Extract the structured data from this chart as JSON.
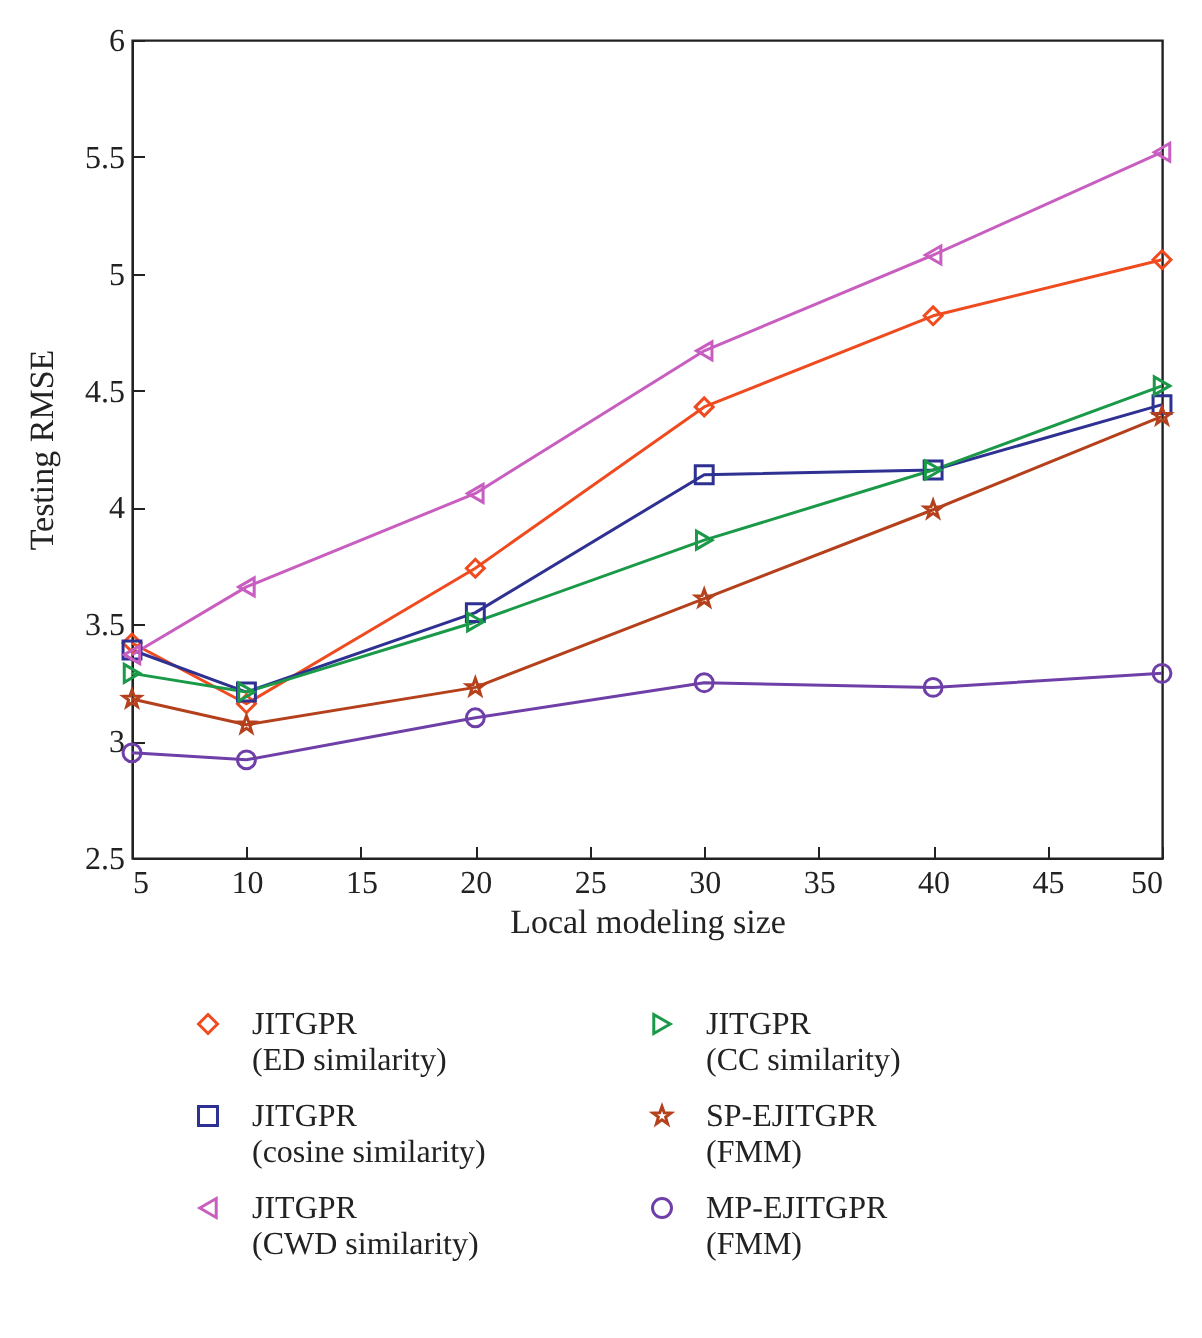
{
  "chart_data": {
    "type": "line",
    "xlabel": "Local modeling size",
    "ylabel": "Testing RMSE",
    "x": [
      5,
      10,
      20,
      30,
      40,
      50
    ],
    "xlim": [
      5,
      50
    ],
    "xticks": [
      5,
      10,
      15,
      20,
      25,
      30,
      35,
      40,
      45,
      50
    ],
    "ylim": [
      2.5,
      6
    ],
    "yticks": [
      2.5,
      3,
      3.5,
      4,
      4.5,
      5,
      5.5,
      6
    ],
    "grid": false,
    "legend": "bottom",
    "series": [
      {
        "name": "JITGPR\n(ED similarity)",
        "color": "#f04a1f",
        "marker": "diamond",
        "values": [
          3.42,
          3.16,
          3.74,
          4.43,
          4.82,
          5.06
        ]
      },
      {
        "name": "JITGPR\n(cosine similarity)",
        "color": "#2e3192",
        "marker": "square",
        "values": [
          3.39,
          3.21,
          3.55,
          4.14,
          4.16,
          4.44
        ]
      },
      {
        "name": "JITGPR\n(CWD similarity)",
        "color": "#c85ec0",
        "marker": "triangle-left",
        "values": [
          3.37,
          3.66,
          4.06,
          4.67,
          5.08,
          5.52
        ]
      },
      {
        "name": "JITGPR\n(CC similarity)",
        "color": "#1a9a48",
        "marker": "triangle-right",
        "values": [
          3.29,
          3.21,
          3.51,
          3.86,
          4.16,
          4.52
        ]
      },
      {
        "name": "SP-EJITGPR\n(FMM)",
        "color": "#b5401c",
        "marker": "star",
        "values": [
          3.18,
          3.07,
          3.23,
          3.61,
          3.99,
          4.39
        ]
      },
      {
        "name": "MP-EJITGPR\n(FMM)",
        "color": "#6f3fa8",
        "marker": "circle",
        "values": [
          2.95,
          2.92,
          3.1,
          3.25,
          3.23,
          3.29
        ]
      }
    ]
  }
}
